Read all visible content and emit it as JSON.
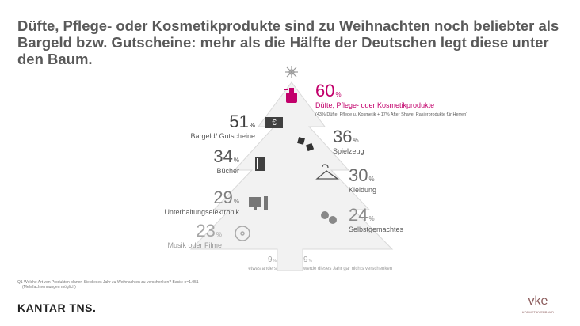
{
  "header": {
    "title": "Düfte, Pflege- oder Kosmetikprodukte sind zu Weihnachten noch beliebter als Bargeld bzw. Gutscheine: mehr als die Hälfte der Deutschen legt diese unter den Baum."
  },
  "unit": "%",
  "items": [
    {
      "value": 60,
      "label": "Düfte, Pflege- oder Kosmetikprodukte",
      "note": "(43% Düfte, Pflege u. Kosmetik + 17% After Shave, Rasierprodukte für Herren)",
      "color": "#c2006b"
    },
    {
      "value": 51,
      "label": "Bargeld/ Gutscheine",
      "color": "#404040"
    },
    {
      "value": 36,
      "label": "Spielzeug",
      "color": "#595959"
    },
    {
      "value": 34,
      "label": "Bücher",
      "color": "#595959"
    },
    {
      "value": 30,
      "label": "Kleidung",
      "color": "#6e6e6e"
    },
    {
      "value": 29,
      "label": "Unterhaltungselektronik",
      "color": "#7f7f7f"
    },
    {
      "value": 24,
      "label": "Selbstgemachtes",
      "color": "#8c8c8c"
    },
    {
      "value": 23,
      "label": "Musik oder Filme",
      "color": "#a6a6a6"
    },
    {
      "value": 9,
      "label": "etwas anders",
      "color": "#a6a6a6"
    },
    {
      "value": 9,
      "label": "werde dieses Jahr gar nichts verschenken",
      "color": "#a6a6a6"
    }
  ],
  "footnote": [
    "Q1 Welche Art von Produkten planen Sie dieses Jahr zu Weihnachten zu verschenken? Basis: n=1.051",
    "(Mehrfachnennungen möglich)"
  ],
  "logos": {
    "left": "KANTAR TNS.",
    "right": "vke",
    "right_sub": "KOSMETIKVERBAND"
  }
}
